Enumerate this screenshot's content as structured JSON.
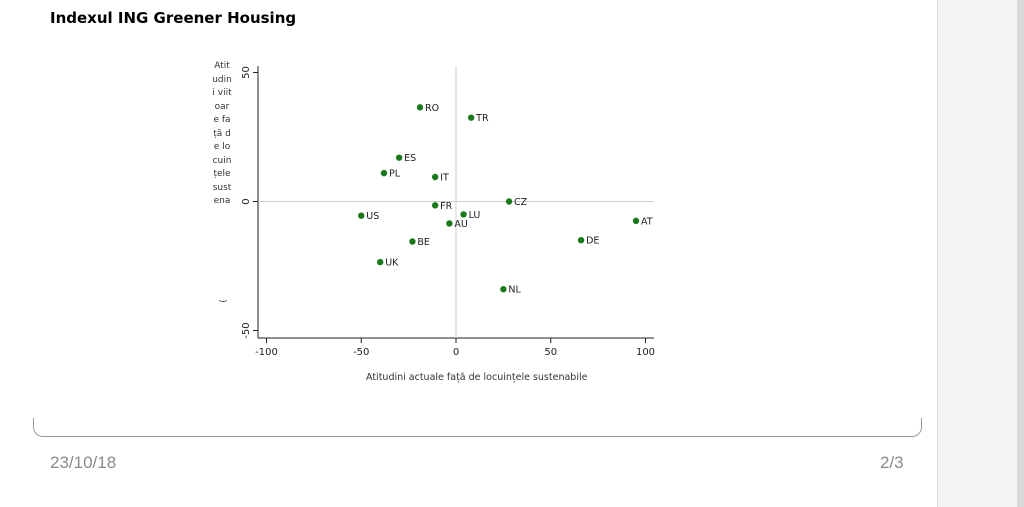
{
  "title": "Indexul ING Greener Housing",
  "footer": {
    "date": "23/10/18",
    "page": "2/3"
  },
  "chart_data": {
    "type": "scatter",
    "xlabel": "Atitudini actuale față de locuințele sustenabile",
    "ylabel": "Atitudini viitoare față de locuințele sustena(",
    "ylabel_visible": "Atitudini viitoare față de locuințele sustena",
    "ylabel_tail": "(",
    "xlim": [
      -100,
      100
    ],
    "ylim": [
      -50,
      50
    ],
    "x_ticks": [
      -100,
      -50,
      0,
      50,
      100
    ],
    "y_ticks": [
      -50,
      0,
      50
    ],
    "reference_lines": {
      "x": 0,
      "y": 0
    },
    "marker_color": "#1a7a1a",
    "points": [
      {
        "label": "RO",
        "x": -19,
        "y": 36.5
      },
      {
        "label": "TR",
        "x": 8,
        "y": 32.5
      },
      {
        "label": "ES",
        "x": -30,
        "y": 17
      },
      {
        "label": "PL",
        "x": -38,
        "y": 11
      },
      {
        "label": "IT",
        "x": -11,
        "y": 9.5
      },
      {
        "label": "CZ",
        "x": 28,
        "y": 0
      },
      {
        "label": "FR",
        "x": -11,
        "y": -1.5
      },
      {
        "label": "LU",
        "x": 4,
        "y": -5
      },
      {
        "label": "AU",
        "x": -3.5,
        "y": -8.5
      },
      {
        "label": "AT",
        "x": 95,
        "y": -7.5
      },
      {
        "label": "US",
        "x": -50,
        "y": -5.5
      },
      {
        "label": "BE",
        "x": -23,
        "y": -15.5
      },
      {
        "label": "DE",
        "x": 66,
        "y": -15
      },
      {
        "label": "UK",
        "x": -40,
        "y": -23.5
      },
      {
        "label": "NL",
        "x": 25,
        "y": -34
      }
    ]
  }
}
